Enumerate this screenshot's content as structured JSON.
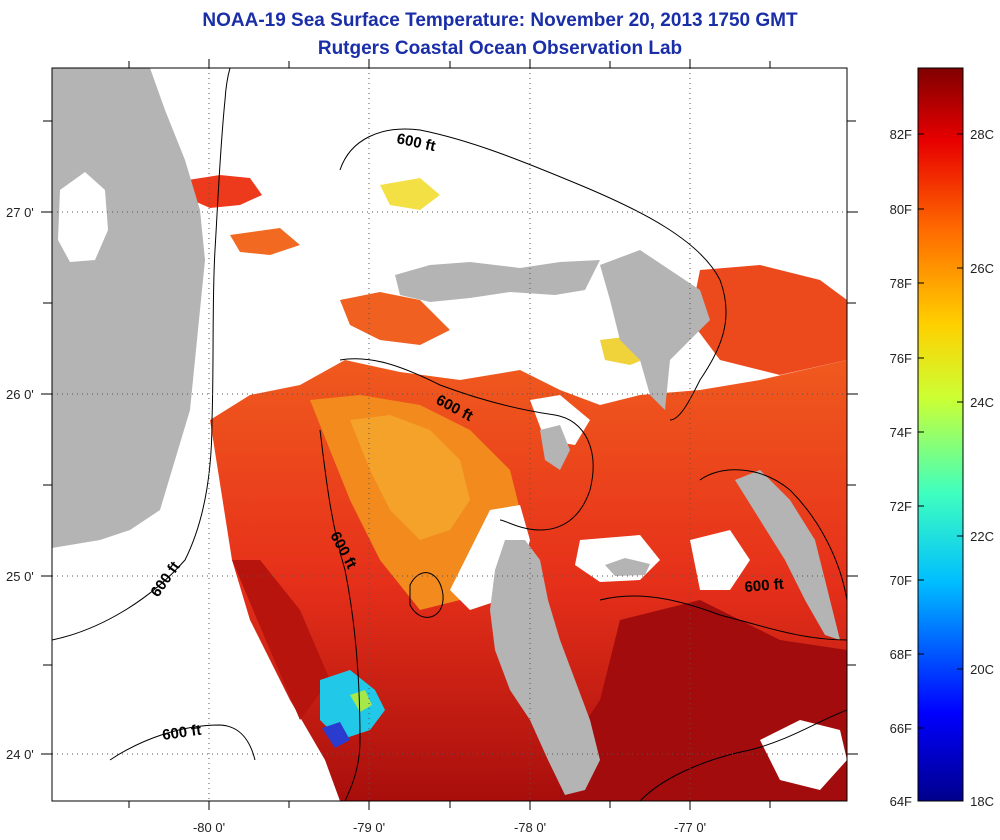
{
  "header": {
    "title_line1": "NOAA-19 Sea Surface Temperature:  November 20, 2013 1750 GMT",
    "title_line2": "Rutgers Coastal Ocean Observation Lab"
  },
  "map": {
    "lon_ticks": [
      "-80 0'",
      "-79 0'",
      "-78 0'",
      "-77 0'"
    ],
    "lat_ticks": [
      "27 0'",
      "26 0'",
      "25 0'",
      "24 0'"
    ],
    "isobath_labels": [
      "600 ft",
      "600 ft",
      "600 ft",
      "600 ft",
      "600 ft",
      "600 ft"
    ],
    "colors": {
      "land": "#b4b4b4",
      "cloud": "#ffffff",
      "warm": "#e8301c",
      "hot": "#b0100c",
      "cool": "#f28a1e"
    }
  },
  "colorbar": {
    "f_labels": [
      "82F",
      "80F",
      "78F",
      "76F",
      "74F",
      "72F",
      "70F",
      "68F",
      "66F",
      "64F"
    ],
    "c_labels": [
      "28C",
      "26C",
      "24C",
      "22C",
      "20C",
      "18C"
    ]
  }
}
